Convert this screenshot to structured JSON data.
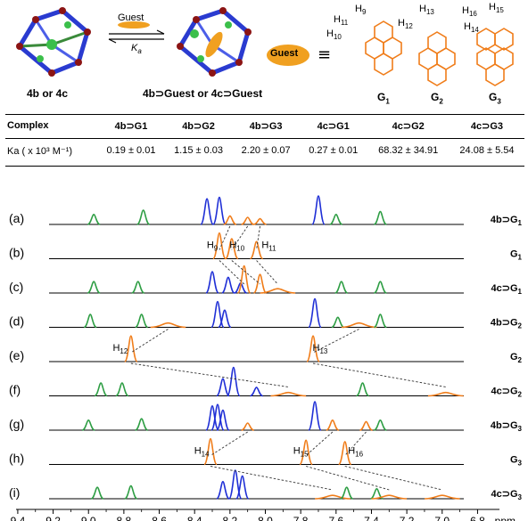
{
  "scheme": {
    "arrow_top": "Guest",
    "arrow_bottom": "K",
    "arrow_bottom_sub": "a",
    "host_label": "4b or 4c",
    "complex_label": "4b⊃Guest or 4c⊃Guest",
    "guest_oval": "Guest",
    "equiv": "≡",
    "guests": [
      {
        "name": "G",
        "sub": "1",
        "h_labels": [
          "H9",
          "H11",
          "H10"
        ]
      },
      {
        "name": "G",
        "sub": "2",
        "h_labels": [
          "H13",
          "H12"
        ]
      },
      {
        "name": "G",
        "sub": "3",
        "h_labels": [
          "H16",
          "H15",
          "H14"
        ]
      }
    ]
  },
  "table": {
    "headers": [
      "Complex",
      "4b⊃G1",
      "4b⊃G2",
      "4b⊃G3",
      "4c⊃G1",
      "4c⊃G2",
      "4c⊃G3"
    ],
    "row_label": "Ka ( x 10³ M⁻¹)",
    "values": [
      "0.19 ± 0.01",
      "1.15 ± 0.03",
      "2.20 ± 0.07",
      "0.27 ± 0.01",
      "68.32 ± 34.91",
      "24.08 ± 5.54"
    ]
  },
  "chart_data": {
    "type": "line",
    "xlabel": "ppm",
    "xlim": [
      9.45,
      6.55
    ],
    "xticks": [
      9.4,
      9.2,
      9.0,
      8.8,
      8.6,
      8.4,
      8.2,
      8.0,
      7.8,
      7.6,
      7.4,
      7.2,
      7.0,
      6.8
    ],
    "tick_labels": [
      "9.4",
      "9.2",
      "9.0",
      "8.8",
      "8.6",
      "8.4",
      "8.2",
      "8.0",
      "7.8",
      "7.6",
      "7.4",
      "7.2",
      "7.0",
      "6.8"
    ],
    "grid": false,
    "colors": {
      "host_green": "#2e9e44",
      "host_blue": "#1f2fd6",
      "guest_orange": "#f07d1a",
      "baseline": "#000000"
    },
    "spectra": [
      {
        "letter": "(a)",
        "label": "4b⊃G",
        "label_sub": "1",
        "peaks": [
          {
            "x": 8.97,
            "h": 0.35,
            "c": "g"
          },
          {
            "x": 8.69,
            "h": 0.5,
            "c": "g"
          },
          {
            "x": 8.33,
            "h": 0.9,
            "c": "b"
          },
          {
            "x": 8.26,
            "h": 0.95,
            "c": "b"
          },
          {
            "x": 8.2,
            "h": 0.3,
            "c": "o"
          },
          {
            "x": 8.1,
            "h": 0.25,
            "c": "o"
          },
          {
            "x": 8.03,
            "h": 0.2,
            "c": "o"
          },
          {
            "x": 7.7,
            "h": 1.0,
            "c": "b"
          },
          {
            "x": 7.6,
            "h": 0.35,
            "c": "g"
          },
          {
            "x": 7.35,
            "h": 0.45,
            "c": "g"
          }
        ]
      },
      {
        "letter": "(b)",
        "label": "G",
        "label_sub": "1",
        "peaks": [
          {
            "x": 8.26,
            "h": 0.9,
            "c": "o"
          },
          {
            "x": 8.19,
            "h": 0.7,
            "c": "o"
          },
          {
            "x": 8.05,
            "h": 0.6,
            "c": "o"
          }
        ]
      },
      {
        "letter": "(c)",
        "label": "4c⊃G",
        "label_sub": "1",
        "peaks": [
          {
            "x": 8.97,
            "h": 0.4,
            "c": "g"
          },
          {
            "x": 8.72,
            "h": 0.4,
            "c": "g"
          },
          {
            "x": 8.3,
            "h": 0.75,
            "c": "b"
          },
          {
            "x": 8.21,
            "h": 0.55,
            "c": "b"
          },
          {
            "x": 8.14,
            "h": 0.35,
            "c": "b"
          },
          {
            "x": 8.12,
            "h": 0.95,
            "c": "o"
          },
          {
            "x": 8.03,
            "h": 0.65,
            "c": "o"
          },
          {
            "x": 7.93,
            "h": 0.15,
            "c": "o"
          },
          {
            "x": 7.57,
            "h": 0.4,
            "c": "g"
          },
          {
            "x": 7.35,
            "h": 0.4,
            "c": "g"
          }
        ]
      },
      {
        "letter": "(d)",
        "label": "4b⊃G",
        "label_sub": "2",
        "peaks": [
          {
            "x": 8.99,
            "h": 0.45,
            "c": "g"
          },
          {
            "x": 8.7,
            "h": 0.45,
            "c": "g"
          },
          {
            "x": 8.55,
            "h": 0.15,
            "c": "o"
          },
          {
            "x": 8.27,
            "h": 0.9,
            "c": "b"
          },
          {
            "x": 8.23,
            "h": 0.6,
            "c": "b"
          },
          {
            "x": 7.72,
            "h": 1.0,
            "c": "b"
          },
          {
            "x": 7.59,
            "h": 0.35,
            "c": "g"
          },
          {
            "x": 7.47,
            "h": 0.15,
            "c": "o"
          },
          {
            "x": 7.35,
            "h": 0.45,
            "c": "g"
          }
        ]
      },
      {
        "letter": "(e)",
        "label": "G",
        "label_sub": "2",
        "peaks": [
          {
            "x": 8.76,
            "h": 0.9,
            "c": "o"
          },
          {
            "x": 7.73,
            "h": 0.9,
            "c": "o"
          }
        ]
      },
      {
        "letter": "(f)",
        "label": "4c⊃G",
        "label_sub": "2",
        "peaks": [
          {
            "x": 8.93,
            "h": 0.45,
            "c": "g"
          },
          {
            "x": 8.81,
            "h": 0.45,
            "c": "g"
          },
          {
            "x": 8.24,
            "h": 0.6,
            "c": "b"
          },
          {
            "x": 8.18,
            "h": 1.0,
            "c": "b"
          },
          {
            "x": 8.05,
            "h": 0.3,
            "c": "b"
          },
          {
            "x": 7.87,
            "h": 0.12,
            "c": "o"
          },
          {
            "x": 7.45,
            "h": 0.45,
            "c": "g"
          },
          {
            "x": 6.98,
            "h": 0.12,
            "c": "o"
          }
        ]
      },
      {
        "letter": "(g)",
        "label": "4b⊃G",
        "label_sub": "3",
        "peaks": [
          {
            "x": 9.0,
            "h": 0.35,
            "c": "g"
          },
          {
            "x": 8.7,
            "h": 0.4,
            "c": "g"
          },
          {
            "x": 8.3,
            "h": 0.85,
            "c": "b"
          },
          {
            "x": 8.27,
            "h": 0.9,
            "c": "b"
          },
          {
            "x": 8.24,
            "h": 0.7,
            "c": "b"
          },
          {
            "x": 8.1,
            "h": 0.25,
            "c": "o"
          },
          {
            "x": 7.72,
            "h": 1.0,
            "c": "b"
          },
          {
            "x": 7.62,
            "h": 0.35,
            "c": "o"
          },
          {
            "x": 7.43,
            "h": 0.3,
            "c": "o"
          },
          {
            "x": 7.35,
            "h": 0.35,
            "c": "g"
          }
        ]
      },
      {
        "letter": "(h)",
        "label": "G",
        "label_sub": "3",
        "peaks": [
          {
            "x": 8.31,
            "h": 0.9,
            "c": "o"
          },
          {
            "x": 7.77,
            "h": 0.85,
            "c": "o"
          },
          {
            "x": 7.55,
            "h": 0.8,
            "c": "o"
          }
        ]
      },
      {
        "letter": "(i)",
        "label": "4c⊃G",
        "label_sub": "3",
        "peaks": [
          {
            "x": 8.95,
            "h": 0.4,
            "c": "g"
          },
          {
            "x": 8.76,
            "h": 0.45,
            "c": "g"
          },
          {
            "x": 8.24,
            "h": 0.6,
            "c": "b"
          },
          {
            "x": 8.17,
            "h": 1.0,
            "c": "b"
          },
          {
            "x": 8.13,
            "h": 0.8,
            "c": "b"
          },
          {
            "x": 7.62,
            "h": 0.12,
            "c": "o"
          },
          {
            "x": 7.54,
            "h": 0.4,
            "c": "g"
          },
          {
            "x": 7.37,
            "h": 0.35,
            "c": "g"
          },
          {
            "x": 7.3,
            "h": 0.12,
            "c": "o"
          },
          {
            "x": 7.0,
            "h": 0.12,
            "c": "o"
          }
        ]
      }
    ],
    "annotations": [
      {
        "text": "H",
        "sub": "9",
        "spectrum": 1,
        "x": 8.3
      },
      {
        "text": "H",
        "sub": "10",
        "spectrum": 1,
        "x": 8.16
      },
      {
        "text": "H",
        "sub": "11",
        "spectrum": 1,
        "x": 7.98
      },
      {
        "text": "H",
        "sub": "12",
        "spectrum": 4,
        "x": 8.82
      },
      {
        "text": "H",
        "sub": "13",
        "spectrum": 4,
        "x": 7.69
      },
      {
        "text": "H",
        "sub": "14",
        "spectrum": 7,
        "x": 8.36
      },
      {
        "text": "H",
        "sub": "15",
        "spectrum": 7,
        "x": 7.8
      },
      {
        "text": "H",
        "sub": "16",
        "spectrum": 7,
        "x": 7.49
      }
    ],
    "correlations": [
      [
        [
          0,
          8.2
        ],
        [
          1,
          8.26
        ]
      ],
      [
        [
          0,
          8.1
        ],
        [
          1,
          8.19
        ]
      ],
      [
        [
          0,
          8.03
        ],
        [
          1,
          8.05
        ]
      ],
      [
        [
          1,
          8.26
        ],
        [
          2,
          8.12
        ]
      ],
      [
        [
          1,
          8.19
        ],
        [
          2,
          8.03
        ]
      ],
      [
        [
          1,
          8.05
        ],
        [
          2,
          7.93
        ]
      ],
      [
        [
          3,
          8.55
        ],
        [
          4,
          8.76
        ]
      ],
      [
        [
          3,
          7.47
        ],
        [
          4,
          7.73
        ]
      ],
      [
        [
          4,
          8.76
        ],
        [
          5,
          7.87
        ]
      ],
      [
        [
          4,
          7.73
        ],
        [
          5,
          6.98
        ]
      ],
      [
        [
          6,
          8.1
        ],
        [
          7,
          8.31
        ]
      ],
      [
        [
          6,
          7.62
        ],
        [
          7,
          7.77
        ]
      ],
      [
        [
          6,
          7.43
        ],
        [
          7,
          7.55
        ]
      ],
      [
        [
          7,
          8.31
        ],
        [
          8,
          7.62
        ]
      ],
      [
        [
          7,
          7.77
        ],
        [
          8,
          7.3
        ]
      ],
      [
        [
          7,
          7.55
        ],
        [
          8,
          7.0
        ]
      ]
    ]
  }
}
